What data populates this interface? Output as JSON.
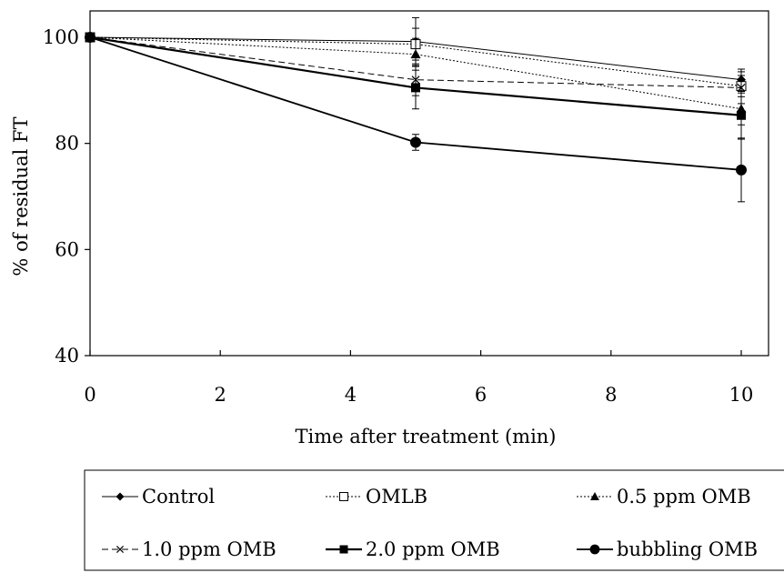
{
  "chart_data": {
    "type": "line",
    "xlabel": "Time after  treatment (min)",
    "ylabel": "% of residual FT",
    "xlim": [
      0,
      10
    ],
    "ylim": [
      40,
      100
    ],
    "xticks": [
      0,
      2,
      4,
      6,
      8,
      10
    ],
    "yticks": [
      40,
      60,
      80,
      100
    ],
    "grid": false,
    "legend_position": "bottom",
    "x": [
      0,
      5,
      10
    ],
    "series": [
      {
        "name": "Control",
        "values": [
          100,
          99.2,
          92.0
        ],
        "errors": [
          0,
          4.5,
          2.0
        ],
        "marker": "diamond",
        "line": "solid-thin"
      },
      {
        "name": "OMLB",
        "values": [
          100,
          98.7,
          90.8
        ],
        "errors": [
          0,
          3.0,
          2.0
        ],
        "marker": "open-square",
        "line": "dotted"
      },
      {
        "name": "0.5 ppm OMB",
        "values": [
          100,
          96.8,
          86.5
        ],
        "errors": [
          0,
          3.0,
          3.0
        ],
        "marker": "triangle",
        "line": "dotted"
      },
      {
        "name": "1.0 ppm OMB",
        "values": [
          100,
          92.0,
          90.5
        ],
        "errors": [
          0,
          3.0,
          3.0
        ],
        "marker": "x",
        "line": "dashed"
      },
      {
        "name": "2.0 ppm OMB",
        "values": [
          100,
          90.5,
          85.3
        ],
        "errors": [
          0,
          4.0,
          4.5
        ],
        "marker": "square",
        "line": "solid"
      },
      {
        "name": "bubbling OMB",
        "values": [
          100,
          80.2,
          75.0
        ],
        "errors": [
          0,
          1.5,
          6.0
        ],
        "marker": "circle",
        "line": "solid-thick"
      }
    ]
  }
}
